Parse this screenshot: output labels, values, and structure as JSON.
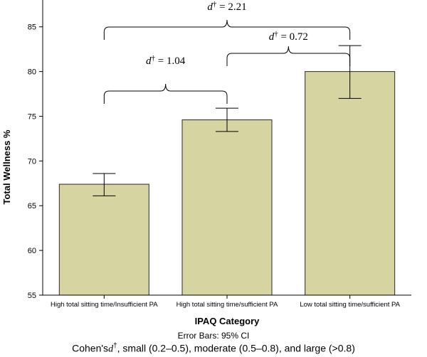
{
  "chart_data": {
    "type": "bar",
    "categories": [
      "High total sitting time/Insufficient PA",
      "High total sitting time/sufficient PA",
      "Low total sitting time/sufficient PA"
    ],
    "values": [
      67.4,
      74.6,
      80.0
    ],
    "error_low": [
      66.1,
      73.3,
      77.0
    ],
    "error_high": [
      68.6,
      75.9,
      82.9
    ],
    "xlabel": "IPAQ Category",
    "ylabel": "Total Wellness %",
    "ylim": [
      55,
      88
    ],
    "yticks": [
      55,
      60,
      65,
      70,
      75,
      80,
      85
    ],
    "ytick_labels": [
      "55",
      "60",
      "65",
      "70",
      "75",
      "80",
      "85"
    ],
    "grid": false,
    "bar_color": "#d6d4a1",
    "annotations": [
      {
        "prefix": "d",
        "mark": "†",
        "text": " = 1.04",
        "from": 0,
        "to": 1
      },
      {
        "prefix": "d",
        "mark": "†",
        "text": " = 0.72",
        "from": 1,
        "to": 2
      },
      {
        "prefix": "d",
        "mark": "†",
        "text": " = 2.21",
        "from": 0,
        "to": 2
      }
    ]
  },
  "footer": {
    "error_bars": "Error Bars: 95% CI",
    "cohen_prefix": "Cohen's",
    "cohen_d": "d",
    "cohen_mark": "†",
    "cohen_rest": ", small (0.2–0.5), moderate (0.5–0.8), and large (>0.8)"
  }
}
